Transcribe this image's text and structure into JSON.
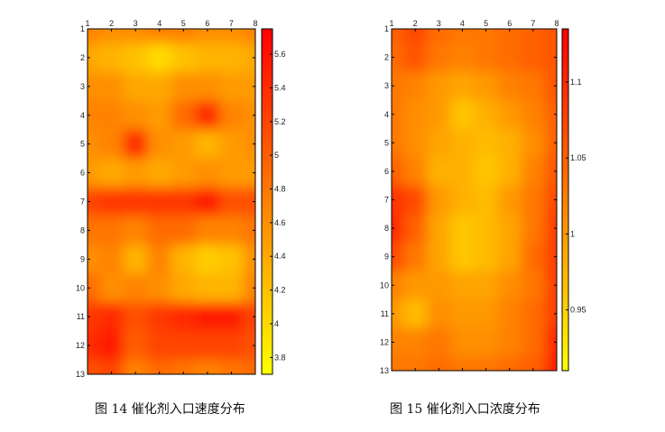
{
  "colors": {
    "low": "#ffff00",
    "mid": "#ff9900",
    "high": "#e60000",
    "axis": "#000000"
  },
  "chart_data": [
    {
      "type": "heatmap",
      "caption": "图 14 催化剂入口速度分布",
      "x_ticks": [
        "1",
        "2",
        "3",
        "4",
        "5",
        "6",
        "7",
        "8"
      ],
      "y_ticks": [
        "1",
        "2",
        "3",
        "4",
        "5",
        "6",
        "7",
        "8",
        "9",
        "10",
        "11",
        "12",
        "13"
      ],
      "colorbar_ticks": [
        "3.8",
        "4",
        "4.2",
        "4.4",
        "4.6",
        "4.8",
        "5",
        "5.2",
        "5.4",
        "5.6"
      ],
      "colorbar_range": [
        3.7,
        5.75
      ],
      "colorscale": "autumn-reversed (yellow low, red high)",
      "values": [
        [
          4.7,
          4.6,
          4.6,
          4.7,
          4.7,
          4.6,
          4.6,
          4.7
        ],
        [
          4.4,
          4.3,
          4.2,
          4.0,
          4.2,
          4.3,
          4.3,
          4.4
        ],
        [
          4.6,
          4.6,
          4.4,
          4.4,
          4.6,
          4.6,
          4.5,
          4.5
        ],
        [
          4.7,
          4.7,
          4.6,
          4.5,
          4.9,
          5.4,
          4.7,
          4.6
        ],
        [
          4.6,
          4.7,
          5.4,
          4.6,
          4.5,
          4.3,
          4.5,
          4.6
        ],
        [
          4.5,
          4.4,
          4.5,
          4.4,
          4.5,
          4.6,
          4.5,
          4.5
        ],
        [
          5.2,
          5.3,
          5.3,
          5.3,
          5.3,
          5.5,
          5.1,
          5.1
        ],
        [
          4.8,
          4.8,
          4.7,
          4.9,
          4.9,
          4.7,
          4.7,
          4.8
        ],
        [
          4.6,
          4.7,
          4.3,
          4.7,
          4.3,
          4.1,
          4.2,
          4.6
        ],
        [
          4.9,
          4.6,
          4.7,
          4.6,
          4.4,
          4.3,
          4.3,
          4.7
        ],
        [
          5.3,
          5.4,
          5.1,
          5.3,
          5.4,
          5.5,
          5.5,
          5.2
        ],
        [
          5.4,
          5.5,
          5.0,
          5.2,
          5.2,
          5.2,
          5.2,
          5.1
        ],
        [
          5.1,
          5.2,
          4.7,
          4.9,
          4.8,
          4.7,
          4.8,
          4.9
        ]
      ]
    },
    {
      "type": "heatmap",
      "caption": "图 15 催化剂入口浓度分布",
      "x_ticks": [
        "1",
        "2",
        "3",
        "4",
        "5",
        "6",
        "7",
        "8"
      ],
      "y_ticks": [
        "1",
        "2",
        "3",
        "4",
        "5",
        "6",
        "7",
        "8",
        "9",
        "10",
        "11",
        "12",
        "13"
      ],
      "colorbar_ticks": [
        "0.95",
        "1",
        "1.05",
        "1.1"
      ],
      "colorbar_range": [
        0.91,
        1.135
      ],
      "colorscale": "autumn-reversed (yellow low, red high)",
      "values": [
        [
          1.05,
          1.07,
          1.04,
          1.03,
          1.03,
          1.04,
          1.05,
          1.06
        ],
        [
          1.04,
          1.06,
          1.03,
          1.02,
          1.03,
          1.04,
          1.05,
          1.06
        ],
        [
          1.03,
          1.02,
          1.0,
          0.99,
          1.0,
          1.02,
          1.03,
          1.06
        ],
        [
          1.03,
          1.01,
          1.0,
          0.96,
          0.98,
          1.0,
          1.02,
          1.05
        ],
        [
          1.03,
          1.01,
          0.99,
          0.98,
          0.97,
          0.98,
          1.01,
          1.05
        ],
        [
          1.05,
          1.02,
          0.98,
          0.98,
          0.96,
          0.98,
          1.02,
          1.06
        ],
        [
          1.09,
          1.07,
          1.0,
          0.98,
          0.97,
          1.0,
          1.03,
          1.07
        ],
        [
          1.1,
          1.05,
          0.99,
          0.96,
          0.97,
          0.99,
          1.03,
          1.08
        ],
        [
          1.07,
          1.03,
          0.99,
          0.96,
          0.97,
          0.99,
          1.04,
          1.08
        ],
        [
          1.02,
          1.0,
          1.0,
          0.99,
          0.99,
          1.01,
          1.03,
          1.08
        ],
        [
          1.0,
          0.97,
          1.01,
          1.0,
          1.0,
          1.02,
          1.04,
          1.08
        ],
        [
          1.02,
          1.02,
          1.03,
          1.01,
          1.01,
          1.02,
          1.04,
          1.1
        ],
        [
          1.03,
          1.03,
          1.04,
          1.03,
          1.03,
          1.04,
          1.05,
          1.11
        ]
      ]
    }
  ]
}
